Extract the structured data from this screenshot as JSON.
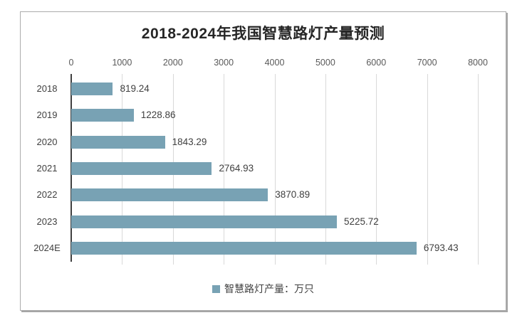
{
  "chart_data": {
    "type": "bar",
    "orientation": "horizontal",
    "title": "2018-2024年我国智慧路灯产量预测",
    "categories": [
      "2018",
      "2019",
      "2020",
      "2021",
      "2022",
      "2023",
      "2024E"
    ],
    "series": [
      {
        "name": "智慧路灯产量：万只",
        "values": [
          819.24,
          1228.86,
          1843.29,
          2764.93,
          3870.89,
          5225.72,
          6793.43
        ]
      }
    ],
    "value_labels": [
      "819.24",
      "1228.86",
      "1843.29",
      "2764.93",
      "3870.89",
      "5225.72",
      "6793.43"
    ],
    "xlabel": "",
    "ylabel": "",
    "x_axis": {
      "position": "top",
      "min": 0,
      "max": 8000,
      "tick_interval": 1000,
      "tick_labels": [
        "0",
        "1000",
        "2000",
        "3000",
        "4000",
        "5000",
        "6000",
        "7000",
        "8000"
      ]
    },
    "grid": "vertical-gridlines-on",
    "legend": {
      "position": "bottom-center",
      "entries": [
        {
          "label": "智慧路灯产量：万只",
          "color": "#78a2b4"
        }
      ]
    },
    "colors": {
      "bar": "#78a2b4",
      "gridline": "#d9d9d9",
      "axis_line": "#404040",
      "tick_label": "#595959",
      "value_label": "#3f3f3f",
      "title": "#262626",
      "frame_border": "#ababab",
      "background": "#ffffff"
    }
  }
}
